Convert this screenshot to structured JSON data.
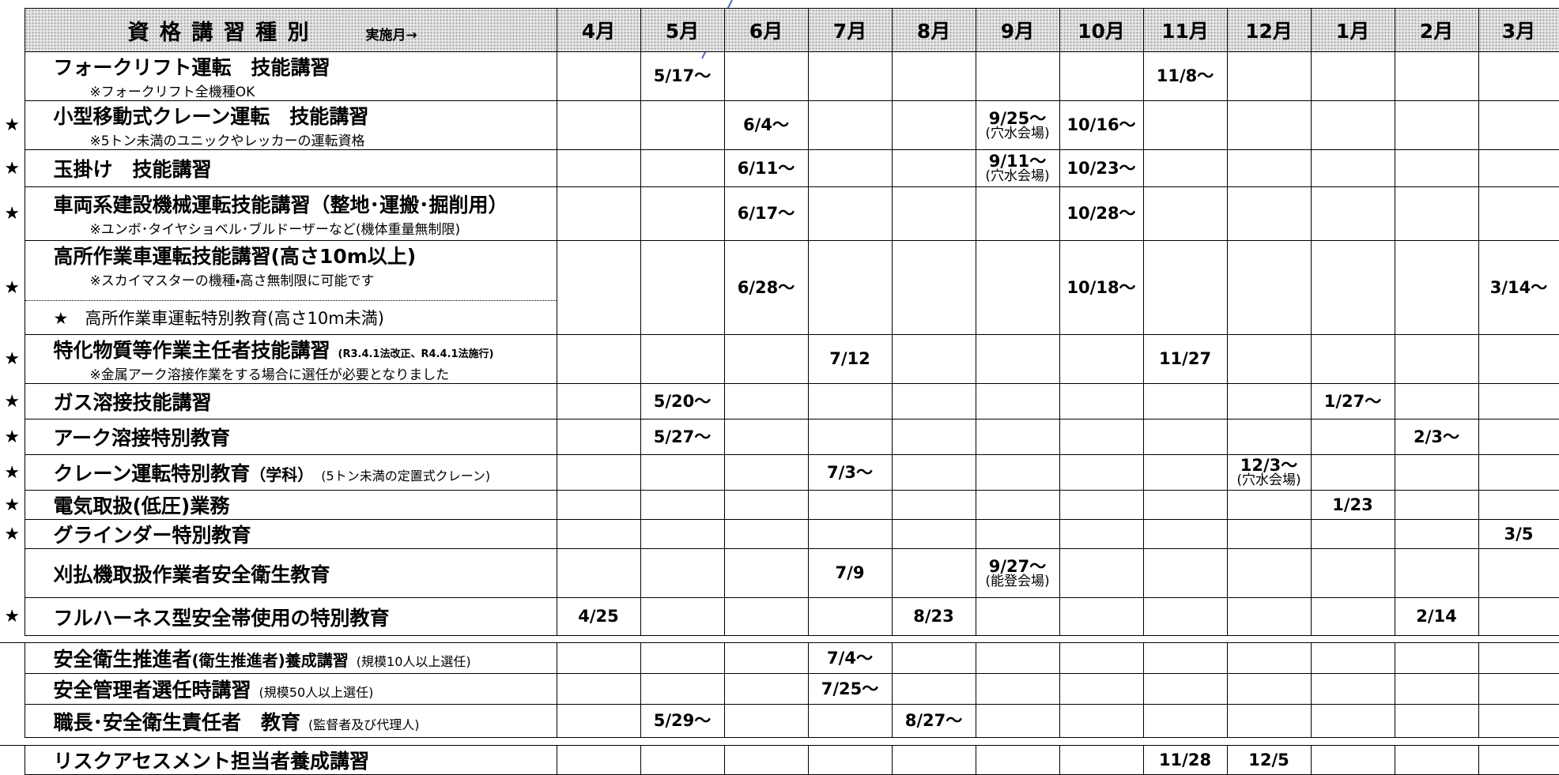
{
  "header": {
    "title": "資 格 講 習 種 別",
    "subtitle": "実施月→",
    "months": [
      "4月",
      "5月",
      "6月",
      "7月",
      "8月",
      "9月",
      "10月",
      "11月",
      "12月",
      "1月",
      "2月",
      "3月"
    ]
  },
  "groups": [
    {
      "rows": [
        {
          "name": "フォークリフト運転　技能講習",
          "note": "※フォークリフト全機種OK",
          "cells": [
            null,
            [
              "5/17～"
            ],
            null,
            null,
            null,
            null,
            null,
            [
              "11/8～"
            ],
            null,
            null,
            null,
            null
          ]
        },
        {
          "star": "★",
          "name": "小型移動式クレーン運転　技能講習",
          "note": "※5トン未満のユニックやレッカーの運転資格",
          "cells": [
            null,
            null,
            [
              "6/4～"
            ],
            null,
            null,
            [
              "9/25～",
              "(穴水会場)"
            ],
            [
              "10/16～"
            ],
            null,
            null,
            null,
            null,
            null
          ]
        },
        {
          "star": "★",
          "name": "玉掛け　技能講習",
          "cells": [
            null,
            null,
            [
              "6/11～"
            ],
            null,
            null,
            [
              "9/11～",
              "(穴水会場)"
            ],
            [
              "10/23～"
            ],
            null,
            null,
            null,
            null,
            null
          ]
        },
        {
          "star": "★",
          "name": "車両系建設機械運転技能講習（整地･運搬･掘削用）",
          "note": "※ユンボ･タイヤショベル･ブルドーザーなど(機体重量無制限)",
          "cells": [
            null,
            null,
            [
              "6/17～"
            ],
            null,
            null,
            null,
            [
              "10/28～"
            ],
            null,
            null,
            null,
            null,
            null
          ]
        },
        {
          "star": "★",
          "name": "高所作業車運転技能講習(高さ10m以上)",
          "note": "※スカイマスターの機種・高さ無制限に可能です",
          "subname": "★　高所作業車運転特別教育(高さ10m未満)",
          "cells": [
            null,
            null,
            [
              "6/28～"
            ],
            null,
            null,
            null,
            [
              "10/18～"
            ],
            null,
            null,
            null,
            null,
            [
              "3/14～"
            ]
          ]
        },
        {
          "star": "★",
          "name": "特化物質等作業主任者技能講習",
          "name_small": "(R3.4.1法改正、R4.4.1法施行)",
          "note": "※金属アーク溶接作業をする場合に選任が必要となりました",
          "cells": [
            null,
            null,
            null,
            [
              "7/12"
            ],
            null,
            null,
            null,
            [
              "11/27"
            ],
            null,
            null,
            null,
            null
          ]
        },
        {
          "star": "★",
          "name": "ガス溶接技能講習",
          "cells": [
            null,
            [
              "5/20～"
            ],
            null,
            null,
            null,
            null,
            null,
            null,
            null,
            [
              "1/27～"
            ],
            null,
            null
          ]
        },
        {
          "star": "★",
          "name": "アーク溶接特別教育",
          "cells": [
            null,
            [
              "5/27～"
            ],
            null,
            null,
            null,
            null,
            null,
            null,
            null,
            null,
            [
              "2/3～"
            ],
            null
          ]
        },
        {
          "star": "★",
          "name": "クレーン運転特別教育",
          "name_mid": "（学科）",
          "name_small": "(5トン未満の定置式クレーン)",
          "cells": [
            null,
            null,
            null,
            [
              "7/3～"
            ],
            null,
            null,
            null,
            null,
            [
              "12/3～",
              "(穴水会場)"
            ],
            null,
            null,
            null
          ]
        },
        {
          "star": "★",
          "name": "電気取扱(低圧)業務",
          "cells": [
            null,
            null,
            null,
            null,
            null,
            null,
            null,
            null,
            null,
            [
              "1/23"
            ],
            null,
            null
          ]
        },
        {
          "star": "★",
          "name": "グラインダー特別教育",
          "cells": [
            null,
            null,
            null,
            null,
            null,
            null,
            null,
            null,
            null,
            null,
            null,
            [
              "3/5"
            ]
          ]
        },
        {
          "name": "刈払機取扱作業者安全衛生教育",
          "cells": [
            null,
            null,
            null,
            [
              "7/9"
            ],
            null,
            [
              "9/27～",
              "(能登会場)"
            ],
            null,
            null,
            null,
            null,
            null,
            null
          ]
        },
        {
          "star": "★",
          "name": "フルハーネス型安全帯使用の特別教育",
          "cells": [
            [
              "4/25"
            ],
            null,
            null,
            null,
            [
              "8/23"
            ],
            null,
            null,
            null,
            null,
            null,
            [
              "2/14"
            ],
            null
          ]
        }
      ]
    },
    {
      "rows": [
        {
          "name": "安全衛生推進者",
          "name_mid": "(衛生推進者)養成講習",
          "name_small": "(規模10人以上選任)",
          "cells": [
            null,
            null,
            null,
            [
              "7/4～"
            ],
            null,
            null,
            null,
            null,
            null,
            null,
            null,
            null
          ]
        },
        {
          "name": "安全管理者選任時講習",
          "name_small": "(規模50人以上選任)",
          "cells": [
            null,
            null,
            null,
            [
              "7/25～"
            ],
            null,
            null,
            null,
            null,
            null,
            null,
            null,
            null
          ]
        },
        {
          "name": "職長･安全衛生責任者　教育",
          "name_small": "(監督者及び代理人)",
          "cells": [
            null,
            [
              "5/29～"
            ],
            null,
            null,
            [
              "8/27～"
            ],
            null,
            null,
            null,
            null,
            null,
            null,
            null
          ]
        }
      ]
    },
    {
      "rows": [
        {
          "name": "リスクアセスメント担当者養成講習",
          "cells": [
            null,
            null,
            null,
            null,
            null,
            null,
            null,
            [
              "11/28"
            ],
            [
              "12/5"
            ],
            null,
            null,
            null
          ]
        }
      ]
    }
  ]
}
